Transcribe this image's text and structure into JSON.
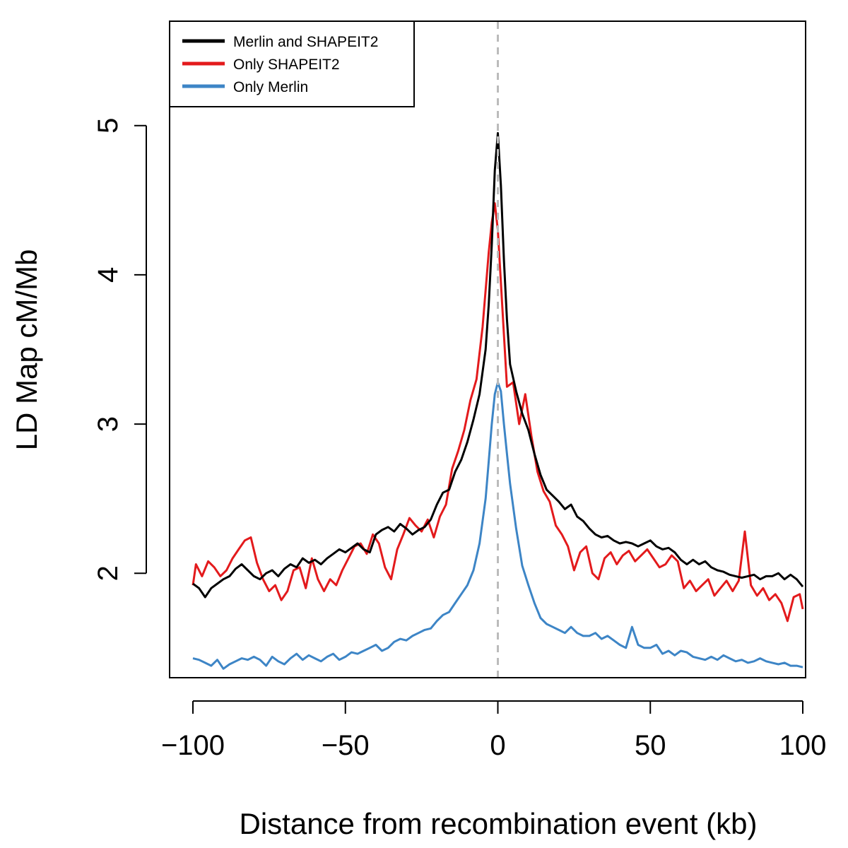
{
  "chart_data": {
    "type": "line",
    "title": "",
    "xlabel": "Distance from recombination event (kb)",
    "ylabel": "LD Map cM/Mb",
    "xlim": [
      -100,
      100
    ],
    "ylim": [
      1.3,
      5.7
    ],
    "xticks": [
      -100,
      -50,
      0,
      50,
      100
    ],
    "xtick_labels": [
      "−100",
      "−50",
      "0",
      "50",
      "100"
    ],
    "yticks": [
      2,
      3,
      4,
      5
    ],
    "ytick_labels": [
      "2",
      "3",
      "4",
      "5"
    ],
    "reference_line": {
      "x": 0,
      "style": "dashed",
      "color": "#bbbbbb"
    },
    "legend_position": "top-left",
    "grid": false,
    "series": [
      {
        "name": "Merlin and SHAPEIT2",
        "color": "#000000",
        "x": [
          -100,
          -98,
          -96,
          -94,
          -92,
          -90,
          -88,
          -86,
          -84,
          -82,
          -80,
          -78,
          -76,
          -74,
          -72,
          -70,
          -68,
          -66,
          -64,
          -62,
          -60,
          -58,
          -56,
          -54,
          -52,
          -50,
          -48,
          -46,
          -44,
          -42,
          -40,
          -38,
          -36,
          -34,
          -32,
          -30,
          -28,
          -26,
          -24,
          -22,
          -20,
          -18,
          -16,
          -14,
          -12,
          -10,
          -8,
          -6,
          -4,
          -3,
          -2,
          -1,
          0,
          1,
          2,
          3,
          4,
          6,
          8,
          10,
          12,
          14,
          16,
          18,
          20,
          22,
          24,
          26,
          28,
          30,
          32,
          34,
          36,
          38,
          40,
          42,
          44,
          46,
          48,
          50,
          52,
          54,
          56,
          58,
          60,
          62,
          64,
          66,
          68,
          70,
          72,
          74,
          76,
          78,
          80,
          82,
          84,
          86,
          88,
          90,
          92,
          94,
          96,
          98,
          100
        ],
        "y": [
          1.93,
          1.9,
          1.84,
          1.9,
          1.93,
          1.96,
          1.98,
          2.03,
          2.06,
          2.02,
          1.98,
          1.96,
          2.0,
          2.02,
          1.98,
          2.03,
          2.06,
          2.04,
          2.1,
          2.07,
          2.09,
          2.06,
          2.1,
          2.13,
          2.16,
          2.14,
          2.17,
          2.2,
          2.16,
          2.14,
          2.26,
          2.29,
          2.31,
          2.28,
          2.33,
          2.3,
          2.26,
          2.29,
          2.31,
          2.36,
          2.46,
          2.54,
          2.56,
          2.68,
          2.76,
          2.88,
          3.03,
          3.2,
          3.5,
          3.8,
          4.2,
          4.7,
          4.95,
          4.6,
          4.1,
          3.7,
          3.4,
          3.22,
          3.07,
          2.96,
          2.8,
          2.66,
          2.56,
          2.52,
          2.48,
          2.43,
          2.46,
          2.38,
          2.35,
          2.3,
          2.26,
          2.24,
          2.25,
          2.22,
          2.2,
          2.21,
          2.2,
          2.18,
          2.2,
          2.22,
          2.18,
          2.16,
          2.17,
          2.14,
          2.09,
          2.06,
          2.09,
          2.06,
          2.08,
          2.04,
          2.02,
          2.01,
          1.99,
          1.98,
          1.97,
          1.98,
          1.99,
          1.96,
          1.98,
          1.98,
          2.0,
          1.96,
          1.99,
          1.96,
          1.91
        ]
      },
      {
        "name": "Only SHAPEIT2",
        "color": "#e31a1c",
        "x": [
          -100,
          -99,
          -97,
          -95,
          -93,
          -91,
          -89,
          -87,
          -85,
          -83,
          -81,
          -79,
          -77,
          -75,
          -73,
          -71,
          -69,
          -67,
          -65,
          -63,
          -61,
          -59,
          -57,
          -55,
          -53,
          -51,
          -49,
          -47,
          -45,
          -43,
          -41,
          -39,
          -37,
          -35,
          -33,
          -31,
          -29,
          -27,
          -25,
          -23,
          -21,
          -19,
          -17,
          -15,
          -13,
          -11,
          -9,
          -7,
          -5,
          -3,
          -2,
          -1,
          0,
          1,
          2,
          3,
          5,
          7,
          9,
          11,
          13,
          15,
          17,
          19,
          21,
          23,
          25,
          27,
          29,
          31,
          33,
          35,
          37,
          39,
          41,
          43,
          45,
          47,
          49,
          51,
          53,
          55,
          57,
          59,
          61,
          63,
          65,
          67,
          69,
          71,
          73,
          75,
          77,
          79,
          81,
          83,
          85,
          87,
          89,
          91,
          93,
          95,
          97,
          99,
          100
        ],
        "y": [
          1.92,
          2.06,
          1.98,
          2.08,
          2.04,
          1.98,
          2.02,
          2.1,
          2.16,
          2.22,
          2.24,
          2.07,
          1.96,
          1.88,
          1.92,
          1.82,
          1.88,
          2.02,
          2.04,
          1.9,
          2.1,
          1.96,
          1.88,
          1.96,
          1.92,
          2.02,
          2.1,
          2.18,
          2.2,
          2.13,
          2.26,
          2.2,
          2.04,
          1.96,
          2.16,
          2.26,
          2.37,
          2.32,
          2.28,
          2.36,
          2.24,
          2.38,
          2.46,
          2.7,
          2.82,
          2.96,
          3.16,
          3.3,
          3.65,
          4.15,
          4.35,
          4.48,
          4.3,
          3.95,
          3.6,
          3.25,
          3.28,
          3.0,
          3.2,
          2.92,
          2.68,
          2.55,
          2.48,
          2.32,
          2.26,
          2.18,
          2.02,
          2.14,
          2.18,
          2.0,
          1.96,
          2.1,
          2.14,
          2.06,
          2.12,
          2.15,
          2.08,
          2.12,
          2.16,
          2.1,
          2.04,
          2.06,
          2.12,
          2.08,
          1.9,
          1.95,
          1.88,
          1.92,
          1.96,
          1.85,
          1.9,
          1.95,
          1.88,
          1.95,
          2.28,
          1.92,
          1.85,
          1.9,
          1.82,
          1.86,
          1.8,
          1.68,
          1.84,
          1.86,
          1.76
        ]
      },
      {
        "name": "Only Merlin",
        "color": "#3d85c6",
        "x": [
          -100,
          -98,
          -96,
          -94,
          -92,
          -90,
          -88,
          -86,
          -84,
          -82,
          -80,
          -78,
          -76,
          -74,
          -72,
          -70,
          -68,
          -66,
          -64,
          -62,
          -60,
          -58,
          -56,
          -54,
          -52,
          -50,
          -48,
          -46,
          -44,
          -42,
          -40,
          -38,
          -36,
          -34,
          -32,
          -30,
          -28,
          -26,
          -24,
          -22,
          -20,
          -18,
          -16,
          -14,
          -12,
          -10,
          -8,
          -6,
          -4,
          -3,
          -2,
          -1,
          0,
          1,
          2,
          3,
          4,
          6,
          8,
          10,
          12,
          14,
          16,
          18,
          20,
          22,
          24,
          26,
          28,
          30,
          32,
          34,
          36,
          38,
          40,
          42,
          44,
          46,
          48,
          50,
          52,
          54,
          56,
          58,
          60,
          62,
          64,
          66,
          68,
          70,
          72,
          74,
          76,
          78,
          80,
          82,
          84,
          86,
          88,
          90,
          92,
          94,
          96,
          98,
          100
        ],
        "y": [
          1.43,
          1.42,
          1.4,
          1.38,
          1.42,
          1.36,
          1.39,
          1.41,
          1.43,
          1.42,
          1.44,
          1.42,
          1.38,
          1.44,
          1.41,
          1.39,
          1.43,
          1.46,
          1.42,
          1.45,
          1.43,
          1.41,
          1.44,
          1.46,
          1.42,
          1.44,
          1.47,
          1.46,
          1.48,
          1.5,
          1.52,
          1.48,
          1.5,
          1.54,
          1.56,
          1.55,
          1.58,
          1.6,
          1.62,
          1.63,
          1.68,
          1.72,
          1.74,
          1.8,
          1.86,
          1.92,
          2.02,
          2.2,
          2.5,
          2.75,
          3.0,
          3.2,
          3.28,
          3.22,
          3.0,
          2.8,
          2.6,
          2.3,
          2.05,
          1.92,
          1.8,
          1.7,
          1.66,
          1.64,
          1.62,
          1.6,
          1.64,
          1.6,
          1.58,
          1.58,
          1.6,
          1.56,
          1.58,
          1.55,
          1.52,
          1.5,
          1.64,
          1.52,
          1.5,
          1.5,
          1.52,
          1.46,
          1.48,
          1.45,
          1.48,
          1.47,
          1.44,
          1.43,
          1.42,
          1.44,
          1.42,
          1.45,
          1.43,
          1.41,
          1.42,
          1.4,
          1.41,
          1.43,
          1.41,
          1.4,
          1.39,
          1.4,
          1.38,
          1.38,
          1.37
        ]
      }
    ]
  }
}
